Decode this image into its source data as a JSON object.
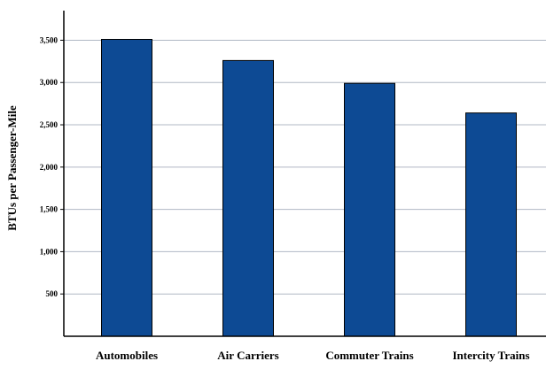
{
  "chart_data": {
    "type": "bar",
    "categories": [
      "Automobiles",
      "Air Carriers",
      "Commuter Trains",
      "Intercity Trains"
    ],
    "values": [
      3510,
      3260,
      2990,
      2640
    ],
    "title": "",
    "xlabel": "",
    "ylabel": "BTUs per Passenger-Mile",
    "ylim": [
      0,
      3850
    ],
    "yticks": [
      500,
      1000,
      1500,
      2000,
      2500,
      3000,
      3500
    ],
    "ytick_labels": [
      "500",
      "1,000",
      "1,500",
      "2,000",
      "2,500",
      "3,000",
      "3,500"
    ],
    "grid": true,
    "bar_color": "#0d4a94",
    "grid_color": "#b0b8c4"
  }
}
